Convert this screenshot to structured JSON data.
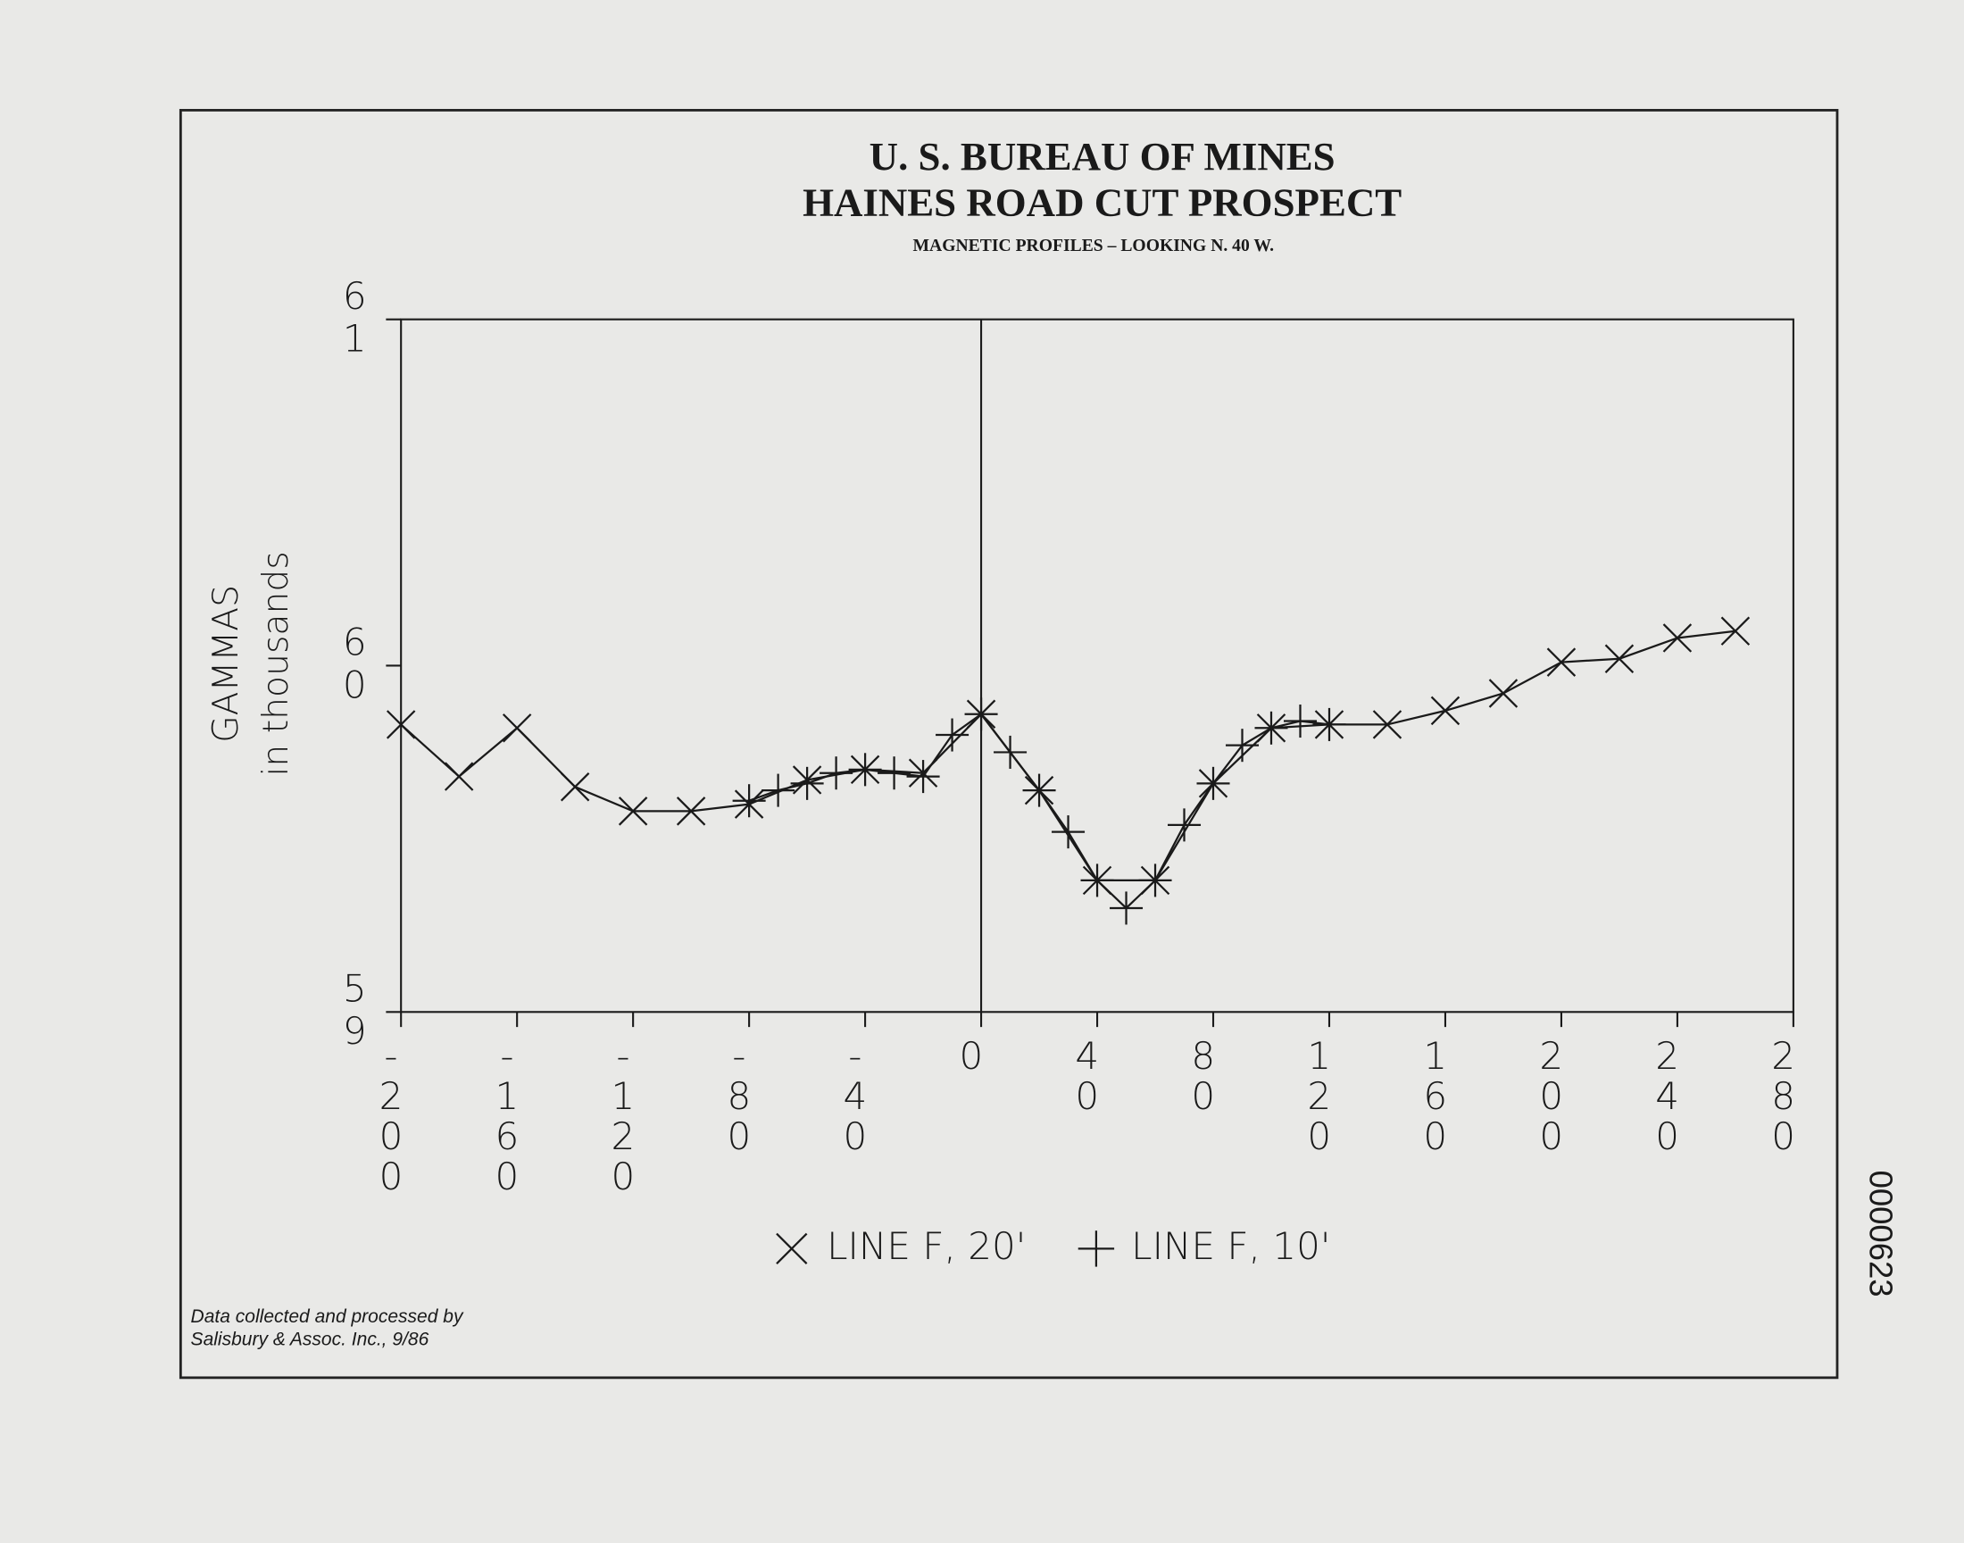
{
  "chart_data": {
    "type": "line",
    "title": "U. S. BUREAU OF MINES",
    "subtitle": "HAINES ROAD CUT PROSPECT",
    "caption": "MAGNETIC PROFILES – LOOKING N. 40 W.",
    "ylabel_lines": [
      "GAMMAS",
      "in thousands"
    ],
    "xlim": [
      -200,
      280
    ],
    "xticks": [
      -200,
      -160,
      -120,
      -80,
      -40,
      0,
      40,
      80,
      120,
      160,
      200,
      240,
      280
    ],
    "ylim": [
      59,
      61
    ],
    "yticks": [
      59,
      60,
      61
    ],
    "zero_line": true,
    "series": [
      {
        "name": "LINE F, 20'",
        "marker": "x",
        "color": "#1a1a1a",
        "x": [
          -200,
          -180,
          -160,
          -140,
          -120,
          -100,
          -80,
          -60,
          -40,
          -20,
          0,
          20,
          40,
          60,
          80,
          100,
          120,
          140,
          160,
          180,
          200,
          220,
          240,
          260
        ],
        "values": [
          59.83,
          59.68,
          59.82,
          59.65,
          59.58,
          59.58,
          59.6,
          59.67,
          59.7,
          59.69,
          59.86,
          59.64,
          59.38,
          59.38,
          59.66,
          59.82,
          59.83,
          59.83,
          59.87,
          59.92,
          60.01,
          60.02,
          60.08,
          60.1
        ]
      },
      {
        "name": "LINE F, 10'",
        "marker": "+",
        "color": "#1a1a1a",
        "x": [
          -80,
          -70,
          -60,
          -50,
          -40,
          -30,
          -20,
          -10,
          0,
          10,
          20,
          30,
          40,
          50,
          60,
          70,
          80,
          90,
          100,
          110,
          120
        ],
        "values": [
          59.61,
          59.64,
          59.66,
          59.69,
          59.7,
          59.69,
          59.68,
          59.8,
          59.86,
          59.75,
          59.64,
          59.52,
          59.38,
          59.3,
          59.38,
          59.54,
          59.66,
          59.77,
          59.82,
          59.84,
          59.83
        ]
      }
    ],
    "footnote_lines": [
      "Data collected and processed by",
      "Salisbury & Assoc. Inc., 9/86"
    ],
    "stamp": "0000623"
  }
}
